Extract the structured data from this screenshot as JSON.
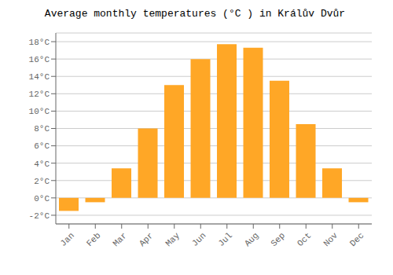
{
  "chart_data": {
    "type": "bar",
    "title": "Average monthly temperatures (°C ) in Králův Dvůr",
    "categories": [
      "Jan",
      "Feb",
      "Mar",
      "Apr",
      "May",
      "Jun",
      "Jul",
      "Aug",
      "Sep",
      "Oct",
      "Nov",
      "Dec"
    ],
    "values": [
      -1.5,
      -0.5,
      3.4,
      8.0,
      13.0,
      16.0,
      17.7,
      17.3,
      13.5,
      8.5,
      3.4,
      -0.5
    ],
    "color": "#FFA726",
    "ylim": [
      -3,
      19
    ],
    "yticks": [
      {
        "value": -2,
        "label": "-2°C"
      },
      {
        "value": 0,
        "label": "0°C"
      },
      {
        "value": 2,
        "label": "2°C"
      },
      {
        "value": 4,
        "label": "4°C"
      },
      {
        "value": 6,
        "label": "6°C"
      },
      {
        "value": 8,
        "label": "8°C"
      },
      {
        "value": 10,
        "label": "10°C"
      },
      {
        "value": 12,
        "label": "12°C"
      },
      {
        "value": 14,
        "label": "14°C"
      },
      {
        "value": 16,
        "label": "16°C"
      },
      {
        "value": 18,
        "label": "18°C"
      }
    ],
    "grid": true
  }
}
